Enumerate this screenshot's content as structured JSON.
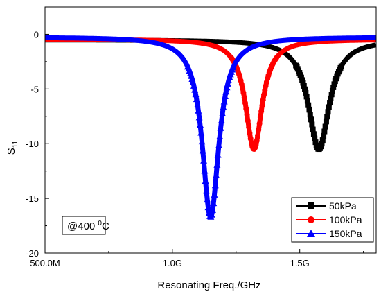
{
  "chart_data": {
    "type": "line",
    "xlabel": "Resonating Freq./GHz",
    "ylabel_main": "S",
    "ylabel_sub": "11",
    "xlim": [
      0.5,
      1.8
    ],
    "ylim": [
      -20,
      2.5
    ],
    "x_ticks": [
      {
        "value": 0.5,
        "label": "500.0M"
      },
      {
        "value": 1.0,
        "label": "1.0G"
      },
      {
        "value": 1.5,
        "label": "1.5G"
      }
    ],
    "y_ticks": [
      {
        "value": 0,
        "label": "0"
      },
      {
        "value": -5,
        "label": "-5"
      },
      {
        "value": -10,
        "label": "-10"
      },
      {
        "value": -15,
        "label": "-15"
      },
      {
        "value": -20,
        "label": "-20"
      }
    ],
    "annotation": {
      "prefix": "@400 ",
      "sup": "0",
      "suffix": "C"
    },
    "legend_position": "bottom-right",
    "series": [
      {
        "name": "50kPa",
        "color": "#000000",
        "marker": "square",
        "resonance_freq": 1.575,
        "min_s11": -10.5,
        "baseline": -0.5,
        "half_width": 0.05
      },
      {
        "name": "100kPa",
        "color": "#ff0000",
        "marker": "circle",
        "resonance_freq": 1.32,
        "min_s11": -10.5,
        "baseline": -0.45,
        "half_width": 0.04
      },
      {
        "name": "150kPa",
        "color": "#0000ff",
        "marker": "triangle",
        "resonance_freq": 1.15,
        "min_s11": -16.7,
        "baseline": -0.25,
        "half_width": 0.04
      }
    ]
  }
}
